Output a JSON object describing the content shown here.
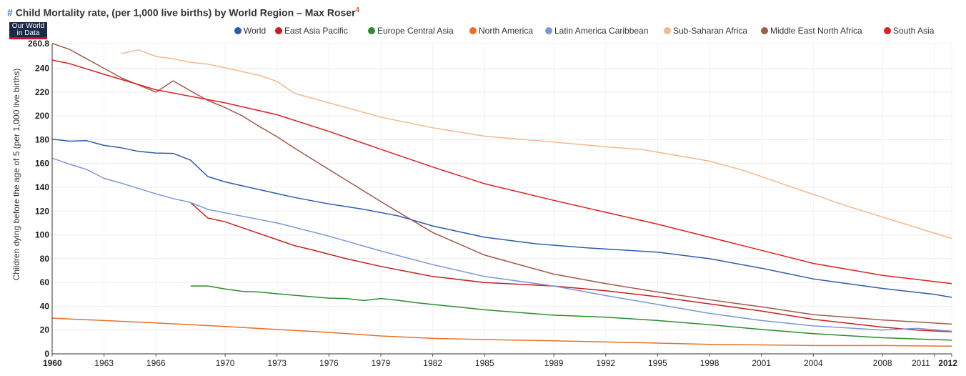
{
  "header": {
    "hash": "#",
    "title": "Child Mortality rate, (per 1,000 live births) by World Region – Max Roser",
    "footnote": "4"
  },
  "logo": {
    "line1": "Our World",
    "line2": "in Data"
  },
  "chart_data": {
    "type": "line",
    "title": "Child Mortality rate, (per 1,000 live births) by World Region – Max Roser",
    "xlabel": "",
    "ylabel": "Children dying before the age of 5 (per 1,000 live births)",
    "xlim": [
      1960,
      2012
    ],
    "ylim": [
      0,
      260.8
    ],
    "y_ticks": [
      0,
      20,
      40,
      60,
      80,
      100,
      120,
      140,
      160,
      180,
      200,
      220,
      240
    ],
    "y_max_label": "260.8",
    "x_ticks": [
      1960,
      1963,
      1966,
      1970,
      1973,
      1976,
      1979,
      1982,
      1985,
      1989,
      1992,
      1995,
      1998,
      2001,
      2004,
      2008,
      2011,
      2012
    ],
    "x_tick_labels": [
      "1960",
      "1963",
      "1966",
      "1970",
      "1973",
      "1976",
      "1979",
      "1982",
      "1985",
      "1989",
      "1992",
      "1995",
      "1998",
      "2001",
      "2004",
      "2008",
      "2011",
      "2012"
    ],
    "grid": true,
    "legend_position": "top",
    "series": [
      {
        "name": "World",
        "color": "#2c5da8",
        "points": [
          [
            1960,
            180.5
          ],
          [
            1961,
            178.8
          ],
          [
            1962,
            179.2
          ],
          [
            1963,
            175.2
          ],
          [
            1964,
            173.2
          ],
          [
            1965,
            170.2
          ],
          [
            1966,
            168.8
          ],
          [
            1967,
            168.5
          ],
          [
            1968,
            162.8
          ],
          [
            1969,
            149
          ],
          [
            1970,
            144.5
          ],
          [
            1972,
            138
          ],
          [
            1974,
            131.5
          ],
          [
            1976,
            126
          ],
          [
            1978,
            121.5
          ],
          [
            1980,
            116
          ],
          [
            1982,
            107.5
          ],
          [
            1985,
            98
          ],
          [
            1988,
            92.5
          ],
          [
            1991,
            89
          ],
          [
            1995,
            85.5
          ],
          [
            1998,
            80
          ],
          [
            2001,
            72
          ],
          [
            2004,
            63
          ],
          [
            2008,
            55
          ],
          [
            2011,
            50
          ],
          [
            2012,
            47.5
          ]
        ]
      },
      {
        "name": "East Asia Pacific",
        "color": "#c81e1e",
        "points": [
          [
            1968,
            127.2
          ],
          [
            1969,
            114.2
          ],
          [
            1970,
            111
          ],
          [
            1972,
            101
          ],
          [
            1974,
            91
          ],
          [
            1975,
            87.5
          ],
          [
            1977,
            80
          ],
          [
            1979,
            73.5
          ],
          [
            1982,
            65
          ],
          [
            1985,
            60
          ],
          [
            1989,
            57
          ],
          [
            1992,
            53
          ],
          [
            1995,
            48
          ],
          [
            1998,
            42
          ],
          [
            2001,
            36
          ],
          [
            2004,
            29
          ],
          [
            2008,
            22.5
          ],
          [
            2010,
            20
          ],
          [
            2012,
            18.5
          ]
        ]
      },
      {
        "name": "Europe Central Asia",
        "color": "#2e8b2e",
        "points": [
          [
            1968,
            57
          ],
          [
            1969,
            57
          ],
          [
            1970,
            54.5
          ],
          [
            1971,
            52.5
          ],
          [
            1972,
            52
          ],
          [
            1973,
            50.5
          ],
          [
            1975,
            48
          ],
          [
            1976,
            46.8
          ],
          [
            1977,
            46.5
          ],
          [
            1978,
            44.8
          ],
          [
            1979,
            46.5
          ],
          [
            1980,
            45
          ],
          [
            1981,
            43
          ],
          [
            1982,
            41.5
          ],
          [
            1985,
            37
          ],
          [
            1989,
            32.5
          ],
          [
            1992,
            30.8
          ],
          [
            1995,
            28
          ],
          [
            1998,
            24.5
          ],
          [
            2001,
            20.5
          ],
          [
            2004,
            17
          ],
          [
            2008,
            13.5
          ],
          [
            2012,
            11.5
          ]
        ]
      },
      {
        "name": "North America",
        "color": "#e8702a",
        "points": [
          [
            1960,
            30
          ],
          [
            1963,
            28
          ],
          [
            1966,
            26
          ],
          [
            1970,
            23
          ],
          [
            1973,
            20.5
          ],
          [
            1976,
            18
          ],
          [
            1979,
            15
          ],
          [
            1982,
            13
          ],
          [
            1985,
            12
          ],
          [
            1989,
            11
          ],
          [
            1992,
            10
          ],
          [
            1995,
            9
          ],
          [
            1998,
            8
          ],
          [
            2001,
            7.5
          ],
          [
            2004,
            7
          ],
          [
            2008,
            7
          ],
          [
            2012,
            6.5
          ]
        ]
      },
      {
        "name": "Latin America Caribbean",
        "color": "#7b96d8",
        "points": [
          [
            1960,
            164.5
          ],
          [
            1961,
            159.5
          ],
          [
            1962,
            155
          ],
          [
            1963,
            147.5
          ],
          [
            1964,
            143.5
          ],
          [
            1965,
            139
          ],
          [
            1966,
            134.5
          ],
          [
            1967,
            130.5
          ],
          [
            1968,
            127.2
          ],
          [
            1969,
            121.5
          ],
          [
            1970,
            118.5
          ],
          [
            1973,
            110
          ],
          [
            1976,
            99
          ],
          [
            1979,
            86.5
          ],
          [
            1982,
            75
          ],
          [
            1985,
            65
          ],
          [
            1989,
            57
          ],
          [
            1992,
            49
          ],
          [
            1995,
            41.5
          ],
          [
            1998,
            34
          ],
          [
            2001,
            28
          ],
          [
            2004,
            23.5
          ],
          [
            2008,
            20
          ],
          [
            2010,
            21.5
          ],
          [
            2012,
            19
          ]
        ]
      },
      {
        "name": "Sub-Saharan Africa",
        "color": "#f6b78c",
        "points": [
          [
            1964,
            252.5
          ],
          [
            1965,
            255.5
          ],
          [
            1966,
            250
          ],
          [
            1967,
            248
          ],
          [
            1968,
            245
          ],
          [
            1969,
            243.5
          ],
          [
            1970,
            240.5
          ],
          [
            1972,
            234
          ],
          [
            1973,
            229
          ],
          [
            1974,
            219
          ],
          [
            1976,
            211
          ],
          [
            1979,
            199
          ],
          [
            1982,
            190
          ],
          [
            1985,
            183
          ],
          [
            1989,
            178
          ],
          [
            1992,
            174
          ],
          [
            1994,
            172
          ],
          [
            1995,
            169.5
          ],
          [
            1998,
            162
          ],
          [
            2000,
            154
          ],
          [
            2002,
            144
          ],
          [
            2004,
            134
          ],
          [
            2006,
            124
          ],
          [
            2008,
            115
          ],
          [
            2010,
            106
          ],
          [
            2012,
            97
          ]
        ]
      },
      {
        "name": "Middle East North Africa",
        "color": "#a05a4a",
        "points": [
          [
            1960,
            261
          ],
          [
            1961,
            256
          ],
          [
            1962,
            248
          ],
          [
            1963,
            240
          ],
          [
            1964,
            232
          ],
          [
            1965,
            226
          ],
          [
            1966,
            220
          ],
          [
            1967,
            229.5
          ],
          [
            1968,
            221
          ],
          [
            1969,
            213
          ],
          [
            1970,
            207
          ],
          [
            1971,
            200
          ],
          [
            1972,
            191
          ],
          [
            1973,
            182.5
          ],
          [
            1974,
            173
          ],
          [
            1976,
            155
          ],
          [
            1979,
            128
          ],
          [
            1982,
            102
          ],
          [
            1985,
            83
          ],
          [
            1989,
            67
          ],
          [
            1992,
            59
          ],
          [
            1995,
            52
          ],
          [
            1998,
            45.5
          ],
          [
            2001,
            39.5
          ],
          [
            2004,
            33
          ],
          [
            2008,
            28.5
          ],
          [
            2012,
            25
          ]
        ]
      },
      {
        "name": "South Asia",
        "color": "#e02020",
        "points": [
          [
            1960,
            247
          ],
          [
            1961,
            244
          ],
          [
            1963,
            235
          ],
          [
            1966,
            222
          ],
          [
            1970,
            211
          ],
          [
            1973,
            201
          ],
          [
            1976,
            187
          ],
          [
            1979,
            172
          ],
          [
            1982,
            157
          ],
          [
            1985,
            143
          ],
          [
            1989,
            129
          ],
          [
            1992,
            119
          ],
          [
            1995,
            109
          ],
          [
            1998,
            98
          ],
          [
            2001,
            87
          ],
          [
            2004,
            76
          ],
          [
            2008,
            66
          ],
          [
            2012,
            59
          ]
        ]
      }
    ]
  }
}
